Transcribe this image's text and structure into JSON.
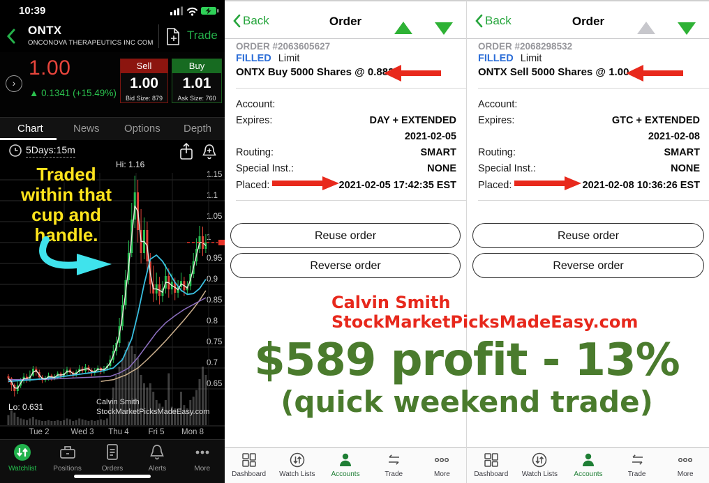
{
  "status": {
    "time": "10:39"
  },
  "stock_header": {
    "symbol": "ONTX",
    "company": "ONCONOVA THERAPEUTICS INC COM",
    "trade": "Trade"
  },
  "quote": {
    "last": "1.00",
    "change": "▲ 0.1341 (+15.49%)",
    "sell_label": "Sell",
    "bid": "1.00",
    "bid_size": "Bid Size: 879",
    "buy_label": "Buy",
    "ask": "1.01",
    "ask_size": "Ask Size: 760"
  },
  "tabs": {
    "chart": "Chart",
    "news": "News",
    "options": "Options",
    "depth": "Depth"
  },
  "chart": {
    "timeframe": "5Days:15m",
    "hi": "Hi: 1.16",
    "lo": "Lo: 0.631",
    "watermark1": "Calvin Smith",
    "watermark2": "StockMarketPicksMadeEasy.com",
    "annotation": [
      "Traded",
      "within that",
      "cup and",
      "handle."
    ],
    "current_price": 1.0,
    "y_ticks": [
      1.15,
      1.1,
      1.05,
      1,
      0.95,
      0.9,
      0.85,
      0.8,
      0.75,
      0.7,
      0.65
    ],
    "x_labels": [
      "Tue 2",
      "Wed 3",
      "Thu 4",
      "Fri 5",
      "Mon 8"
    ],
    "candles": [
      [
        0.68,
        0.675,
        0.665,
        0.685
      ],
      [
        0.675,
        0.66,
        0.645,
        0.678
      ],
      [
        0.66,
        0.645,
        0.632,
        0.663
      ],
      [
        0.645,
        0.658,
        0.638,
        0.668
      ],
      [
        0.658,
        0.67,
        0.652,
        0.676
      ],
      [
        0.67,
        0.679,
        0.663,
        0.688
      ],
      [
        0.679,
        0.672,
        0.665,
        0.686
      ],
      [
        0.672,
        0.682,
        0.667,
        0.694
      ],
      [
        0.682,
        0.698,
        0.679,
        0.705
      ],
      [
        0.698,
        0.69,
        0.682,
        0.704
      ],
      [
        0.69,
        0.678,
        0.671,
        0.696
      ],
      [
        0.678,
        0.671,
        0.664,
        0.683
      ],
      [
        0.671,
        0.676,
        0.666,
        0.681
      ],
      [
        0.676,
        0.682,
        0.67,
        0.689
      ],
      [
        0.682,
        0.675,
        0.669,
        0.686
      ],
      [
        0.675,
        0.68,
        0.671,
        0.685
      ],
      [
        0.68,
        0.687,
        0.675,
        0.692
      ],
      [
        0.687,
        0.68,
        0.674,
        0.691
      ],
      [
        0.68,
        0.688,
        0.676,
        0.698
      ],
      [
        0.688,
        0.696,
        0.683,
        0.703
      ],
      [
        0.696,
        0.689,
        0.682,
        0.701
      ],
      [
        0.689,
        0.683,
        0.677,
        0.693
      ],
      [
        0.683,
        0.69,
        0.679,
        0.696
      ],
      [
        0.69,
        0.698,
        0.686,
        0.707
      ],
      [
        0.698,
        0.693,
        0.688,
        0.704
      ],
      [
        0.693,
        0.702,
        0.688,
        0.71
      ],
      [
        0.702,
        0.695,
        0.687,
        0.707
      ],
      [
        0.695,
        0.688,
        0.68,
        0.699
      ],
      [
        0.688,
        0.694,
        0.682,
        0.7
      ],
      [
        0.694,
        0.7,
        0.689,
        0.706
      ],
      [
        0.7,
        0.693,
        0.685,
        0.703
      ],
      [
        0.693,
        0.699,
        0.687,
        0.705
      ],
      [
        0.699,
        0.705,
        0.693,
        0.712
      ],
      [
        0.705,
        0.72,
        0.698,
        0.73
      ],
      [
        0.72,
        0.74,
        0.712,
        0.755
      ],
      [
        0.74,
        0.76,
        0.73,
        0.775
      ],
      [
        0.76,
        0.8,
        0.75,
        0.82
      ],
      [
        0.8,
        0.85,
        0.79,
        0.875
      ],
      [
        0.85,
        0.91,
        0.84,
        0.935
      ],
      [
        0.91,
        0.975,
        0.9,
        1.005
      ],
      [
        0.975,
        1.055,
        0.965,
        1.095
      ],
      [
        1.055,
        1.12,
        1.035,
        1.16
      ],
      [
        1.12,
        1.03,
        1.0,
        1.15
      ],
      [
        1.03,
        0.975,
        0.95,
        1.08
      ],
      [
        0.975,
        1.03,
        0.96,
        1.06
      ],
      [
        1.03,
        0.955,
        0.935,
        1.05
      ],
      [
        0.955,
        0.9,
        0.878,
        0.975
      ],
      [
        0.9,
        0.878,
        0.858,
        0.945
      ],
      [
        0.878,
        0.9,
        0.862,
        0.928
      ],
      [
        0.9,
        0.872,
        0.852,
        0.918
      ],
      [
        0.872,
        0.89,
        0.858,
        0.908
      ],
      [
        0.89,
        0.92,
        0.878,
        0.948
      ],
      [
        0.92,
        0.888,
        0.868,
        0.938
      ],
      [
        0.888,
        0.906,
        0.876,
        0.926
      ],
      [
        0.906,
        0.88,
        0.862,
        0.916
      ],
      [
        0.88,
        0.894,
        0.868,
        0.91
      ],
      [
        0.894,
        0.908,
        0.882,
        0.928
      ],
      [
        0.908,
        0.886,
        0.872,
        0.918
      ],
      [
        0.886,
        0.896,
        0.876,
        0.908
      ],
      [
        0.896,
        0.925,
        0.886,
        0.945
      ],
      [
        0.925,
        0.955,
        0.915,
        0.975
      ],
      [
        0.955,
        0.985,
        0.945,
        1.01
      ],
      [
        0.985,
        1.015,
        0.975,
        1.04
      ],
      [
        1.015,
        0.985,
        0.968,
        1.038
      ],
      [
        0.985,
        1.0,
        0.975,
        1.02
      ]
    ],
    "volumes": [
      0.12,
      0.18,
      0.15,
      0.1,
      0.08,
      0.07,
      0.06,
      0.08,
      0.1,
      0.07,
      0.06,
      0.05,
      0.05,
      0.06,
      0.05,
      0.05,
      0.06,
      0.05,
      0.06,
      0.08,
      0.07,
      0.05,
      0.06,
      0.08,
      0.07,
      0.06,
      0.05,
      0.06,
      0.05,
      0.06,
      0.07,
      0.06,
      0.08,
      0.3,
      0.45,
      0.6,
      0.7,
      0.8,
      0.9,
      1.0,
      0.95,
      0.85,
      0.8,
      0.6,
      0.5,
      0.45,
      0.5,
      0.4,
      0.3,
      0.26,
      0.22,
      0.3,
      0.62,
      0.22,
      0.2,
      0.18,
      0.4,
      0.24,
      0.2,
      0.3,
      0.34,
      0.42,
      0.55,
      0.7,
      0.6
    ],
    "ma_cyan": [
      [
        0,
        0.668
      ],
      [
        8,
        0.672
      ],
      [
        16,
        0.678
      ],
      [
        24,
        0.686
      ],
      [
        30,
        0.692
      ],
      [
        34,
        0.7
      ],
      [
        37,
        0.72
      ],
      [
        40,
        0.77
      ],
      [
        42,
        0.83
      ],
      [
        44,
        0.9
      ],
      [
        46,
        0.96
      ],
      [
        48,
        0.97
      ],
      [
        50,
        0.955
      ],
      [
        52,
        0.93
      ],
      [
        54,
        0.905
      ],
      [
        56,
        0.886
      ],
      [
        58,
        0.876
      ],
      [
        60,
        0.878
      ],
      [
        62,
        0.89
      ],
      [
        64,
        0.912
      ]
    ],
    "ma_purple": [
      [
        0,
        0.672
      ],
      [
        12,
        0.673
      ],
      [
        24,
        0.677
      ],
      [
        33,
        0.68
      ],
      [
        36,
        0.688
      ],
      [
        39,
        0.7
      ],
      [
        42,
        0.725
      ],
      [
        45,
        0.755
      ],
      [
        48,
        0.785
      ],
      [
        51,
        0.808
      ],
      [
        54,
        0.825
      ],
      [
        57,
        0.84
      ],
      [
        60,
        0.852
      ],
      [
        62,
        0.86
      ],
      [
        64,
        0.868
      ]
    ],
    "ma_tan": [
      [
        30,
        0.668
      ],
      [
        34,
        0.672
      ],
      [
        38,
        0.683
      ],
      [
        42,
        0.7
      ],
      [
        45,
        0.72
      ],
      [
        48,
        0.742
      ],
      [
        51,
        0.765
      ],
      [
        54,
        0.79
      ],
      [
        57,
        0.815
      ],
      [
        60,
        0.842
      ],
      [
        62,
        0.862
      ],
      [
        64,
        0.885
      ]
    ]
  },
  "left_nav": {
    "items": [
      {
        "label": "Watchlist",
        "active": true
      },
      {
        "label": "Positions",
        "active": false
      },
      {
        "label": "Orders",
        "active": false
      },
      {
        "label": "Alerts",
        "active": false
      },
      {
        "label": "More",
        "active": false
      }
    ]
  },
  "orders": [
    {
      "back": "Back",
      "title": "Order",
      "order_no": "ORDER #2063605627",
      "status": "FILLED",
      "type": "Limit",
      "summary": "ONTX Buy 5000 Shares @ 0.8822",
      "rows": [
        {
          "label": "Account:",
          "value": ""
        },
        {
          "label": "Expires:",
          "value": "DAY + EXTENDED"
        },
        {
          "label": "",
          "value": "2021-02-05"
        },
        {
          "label": "Routing:",
          "value": "SMART"
        },
        {
          "label": "Special Inst.:",
          "value": "NONE"
        },
        {
          "label": "Placed:",
          "value": "2021-02-05 17:42:35 EST"
        }
      ],
      "buttons": [
        "Reuse order",
        "Reverse order"
      ],
      "up_enabled": true
    },
    {
      "back": "Back",
      "title": "Order",
      "order_no": "ORDER #2068298532",
      "status": "FILLED",
      "type": "Limit",
      "summary": "ONTX Sell 5000 Shares @ 1.00",
      "rows": [
        {
          "label": "Account:",
          "value": ""
        },
        {
          "label": "Expires:",
          "value": "GTC + EXTENDED"
        },
        {
          "label": "",
          "value": "2021-02-08"
        },
        {
          "label": "Routing:",
          "value": "SMART"
        },
        {
          "label": "Special Inst.:",
          "value": "NONE"
        },
        {
          "label": "Placed:",
          "value": "2021-02-08 10:36:26 EST"
        }
      ],
      "buttons": [
        "Reuse order",
        "Reverse order"
      ],
      "up_enabled": false
    }
  ],
  "phone_nav": {
    "items": [
      "Dashboard",
      "Watch Lists",
      "Accounts",
      "Trade",
      "More"
    ],
    "active": "Accounts"
  },
  "promo": {
    "author": "Calvin Smith",
    "site": "StockMarketPicksMadeEasy.com",
    "headline": "$589 profit - 13%",
    "subline": "(quick weekend trade)"
  },
  "colors": {
    "accent_green": "#25b14b",
    "price_red": "#e8453c",
    "filled_blue": "#2e6fd8",
    "arrow_red": "#e8291c",
    "promo_red": "#e7281c",
    "promo_green": "#4a7b2d",
    "candle_green": "#26c152",
    "candle_red": "#e04438",
    "ma_white": "#e6e6da",
    "ma_cyan": "#39bfe0",
    "ma_purple": "#8d6fc0",
    "ma_tan": "#cdb18e"
  }
}
